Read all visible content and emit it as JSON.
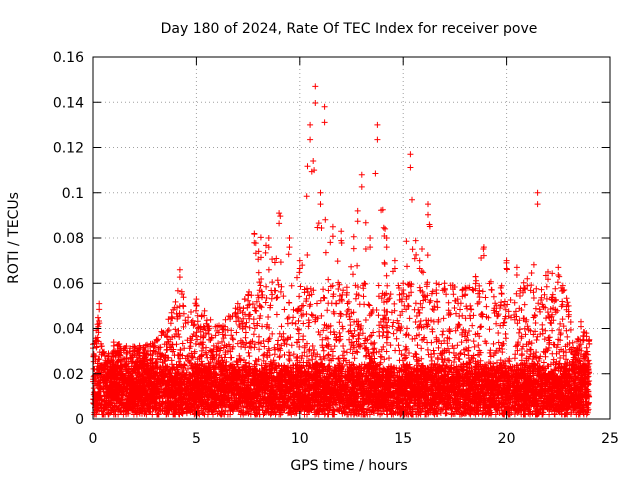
{
  "chart_data": {
    "type": "scatter",
    "title": "Day 180 of 2024, Rate Of TEC Index for receiver pove",
    "xlabel": "GPS time / hours",
    "ylabel": "ROTI / TECUs",
    "xlim": [
      0,
      25
    ],
    "ylim": [
      0,
      0.16
    ],
    "x_ticks": [
      0,
      5,
      10,
      15,
      20,
      25
    ],
    "x_tick_labels": [
      "0",
      "5",
      "10",
      "15",
      "20",
      "25"
    ],
    "y_ticks": [
      0,
      0.02,
      0.04,
      0.06,
      0.08,
      0.1,
      0.12,
      0.14,
      0.16
    ],
    "y_tick_labels": [
      "0",
      "0.02",
      "0.04",
      "0.06",
      "0.08",
      "0.1",
      "0.12",
      "0.14",
      "0.16"
    ],
    "grid": true,
    "marker": "+",
    "marker_color": "#ff0000",
    "series": [
      {
        "name": "ROTI",
        "x_range": [
          0.0,
          24.0
        ],
        "envelope": [
          {
            "x": 0.0,
            "y": 0.033
          },
          {
            "x": 0.3,
            "y": 0.051
          },
          {
            "x": 0.6,
            "y": 0.026
          },
          {
            "x": 1.0,
            "y": 0.034
          },
          {
            "x": 2.0,
            "y": 0.032
          },
          {
            "x": 3.0,
            "y": 0.034
          },
          {
            "x": 3.8,
            "y": 0.047
          },
          {
            "x": 4.2,
            "y": 0.066
          },
          {
            "x": 4.6,
            "y": 0.045
          },
          {
            "x": 5.0,
            "y": 0.053
          },
          {
            "x": 6.0,
            "y": 0.041
          },
          {
            "x": 7.0,
            "y": 0.051
          },
          {
            "x": 7.5,
            "y": 0.055
          },
          {
            "x": 7.8,
            "y": 0.082
          },
          {
            "x": 8.5,
            "y": 0.08
          },
          {
            "x": 9.0,
            "y": 0.091
          },
          {
            "x": 9.5,
            "y": 0.08
          },
          {
            "x": 10.0,
            "y": 0.07
          },
          {
            "x": 10.5,
            "y": 0.13
          },
          {
            "x": 10.75,
            "y": 0.147
          },
          {
            "x": 11.0,
            "y": 0.1
          },
          {
            "x": 11.2,
            "y": 0.138
          },
          {
            "x": 11.6,
            "y": 0.085
          },
          {
            "x": 12.0,
            "y": 0.083
          },
          {
            "x": 12.8,
            "y": 0.092
          },
          {
            "x": 13.0,
            "y": 0.108
          },
          {
            "x": 13.4,
            "y": 0.08
          },
          {
            "x": 13.75,
            "y": 0.13
          },
          {
            "x": 14.2,
            "y": 0.08
          },
          {
            "x": 14.6,
            "y": 0.07
          },
          {
            "x": 15.0,
            "y": 0.06
          },
          {
            "x": 15.35,
            "y": 0.117
          },
          {
            "x": 15.8,
            "y": 0.07
          },
          {
            "x": 16.2,
            "y": 0.095
          },
          {
            "x": 16.6,
            "y": 0.06
          },
          {
            "x": 17.0,
            "y": 0.06
          },
          {
            "x": 18.0,
            "y": 0.058
          },
          {
            "x": 18.5,
            "y": 0.063
          },
          {
            "x": 18.9,
            "y": 0.076
          },
          {
            "x": 19.5,
            "y": 0.05
          },
          {
            "x": 20.0,
            "y": 0.07
          },
          {
            "x": 20.5,
            "y": 0.067
          },
          {
            "x": 21.0,
            "y": 0.062
          },
          {
            "x": 21.5,
            "y": 0.1
          },
          {
            "x": 22.0,
            "y": 0.065
          },
          {
            "x": 22.5,
            "y": 0.067
          },
          {
            "x": 23.0,
            "y": 0.05
          },
          {
            "x": 23.3,
            "y": 0.03
          },
          {
            "x": 23.6,
            "y": 0.043
          },
          {
            "x": 24.0,
            "y": 0.035
          }
        ],
        "baseline": [
          0.003,
          0.022
        ]
      }
    ]
  }
}
